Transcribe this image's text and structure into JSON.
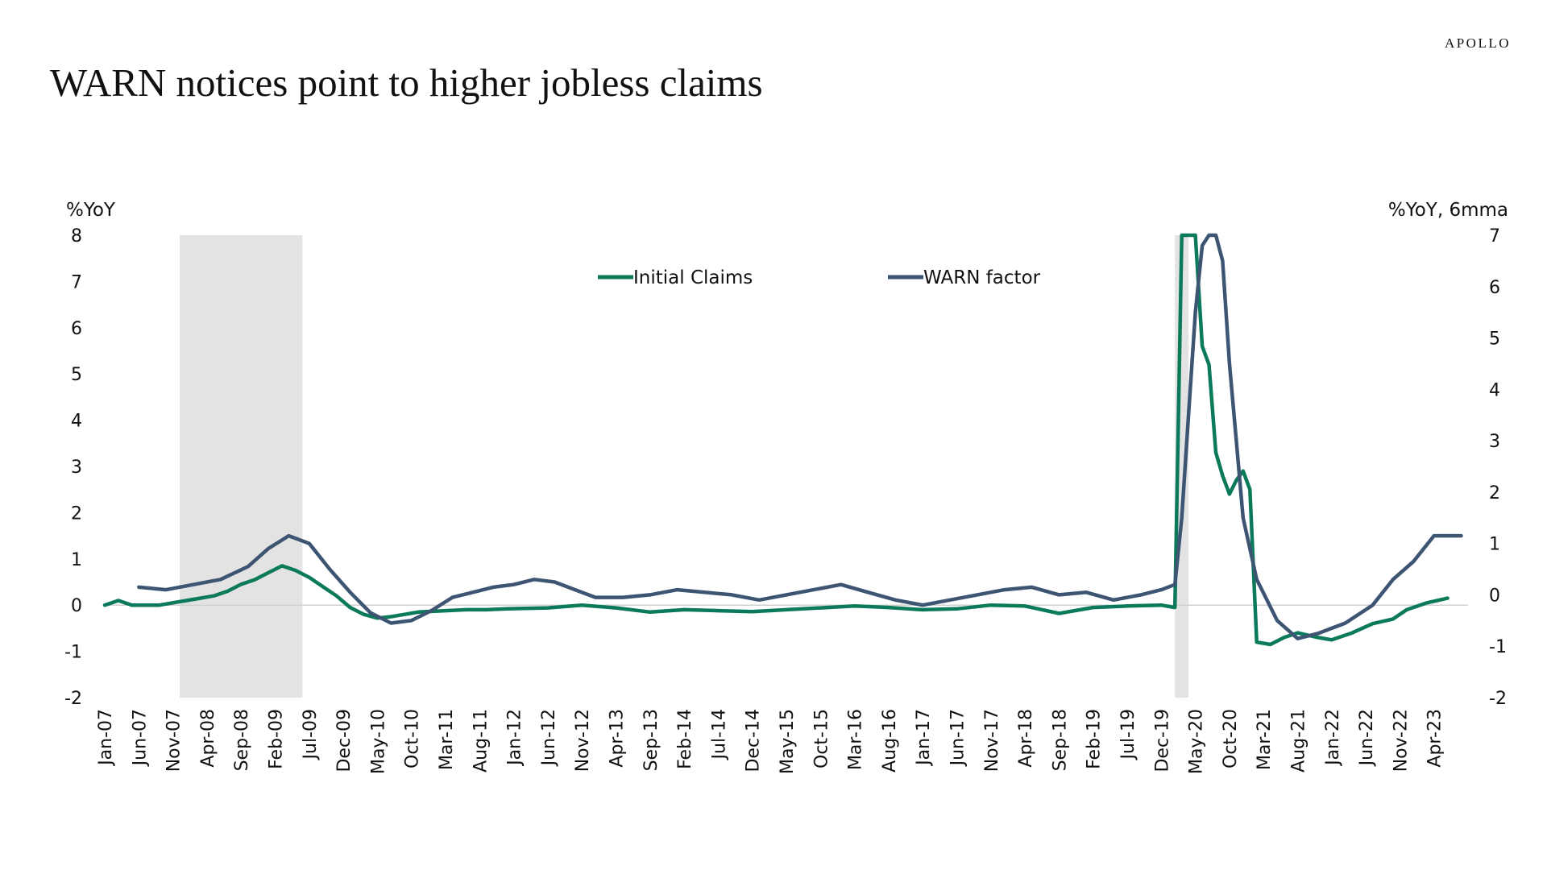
{
  "brand": "APOLLO",
  "title": "WARN notices point to higher jobless claims",
  "colors": {
    "initial_claims": "#0b7a5a",
    "warn_factor": "#3d5573",
    "recession": "#e3e3e3",
    "zero_line": "#d0d0d0"
  },
  "chart_data": {
    "type": "line",
    "title": "WARN notices point to higher jobless claims",
    "left_axis_label": "%YoY",
    "right_axis_label": "%YoY, 6mma",
    "ylim_left": [
      -2,
      8
    ],
    "ylim_right": [
      -2,
      7
    ],
    "yticks_left": [
      "8",
      "7",
      "6",
      "5",
      "4",
      "3",
      "2",
      "1",
      "0",
      "-1",
      "-2"
    ],
    "yticks_right": [
      "7",
      "6",
      "5",
      "4",
      "3",
      "2",
      "1",
      "0",
      "-1",
      "-2"
    ],
    "x_tick_labels": [
      "Jan-07",
      "Jun-07",
      "Nov-07",
      "Apr-08",
      "Sep-08",
      "Feb-09",
      "Jul-09",
      "Dec-09",
      "May-10",
      "Oct-10",
      "Mar-11",
      "Aug-11",
      "Jan-12",
      "Jun-12",
      "Nov-12",
      "Apr-13",
      "Sep-13",
      "Feb-14",
      "Jul-14",
      "Dec-14",
      "May-15",
      "Oct-15",
      "Mar-16",
      "Aug-16",
      "Jan-17",
      "Jun-17",
      "Nov-17",
      "Apr-18",
      "Sep-18",
      "Feb-19",
      "Jul-19",
      "Dec-19",
      "May-20",
      "Oct-20",
      "Mar-21",
      "Aug-21",
      "Jan-22",
      "Jun-22",
      "Nov-22",
      "Apr-23"
    ],
    "recessions": [
      [
        "2007-12",
        "2009-06"
      ],
      [
        "2020-02",
        "2020-04"
      ]
    ],
    "legend_position": "top",
    "series": [
      {
        "name": "Initial Claims",
        "axis": "left",
        "points": [
          [
            "2007-01",
            0.0
          ],
          [
            "2007-03",
            0.1
          ],
          [
            "2007-05",
            0.0
          ],
          [
            "2007-07",
            0.0
          ],
          [
            "2007-09",
            0.0
          ],
          [
            "2007-11",
            0.05
          ],
          [
            "2008-01",
            0.1
          ],
          [
            "2008-03",
            0.15
          ],
          [
            "2008-05",
            0.2
          ],
          [
            "2008-07",
            0.3
          ],
          [
            "2008-09",
            0.45
          ],
          [
            "2008-11",
            0.55
          ],
          [
            "2009-01",
            0.7
          ],
          [
            "2009-03",
            0.85
          ],
          [
            "2009-05",
            0.75
          ],
          [
            "2009-07",
            0.6
          ],
          [
            "2009-09",
            0.4
          ],
          [
            "2009-11",
            0.2
          ],
          [
            "2010-01",
            -0.05
          ],
          [
            "2010-03",
            -0.2
          ],
          [
            "2010-05",
            -0.28
          ],
          [
            "2010-07",
            -0.25
          ],
          [
            "2010-09",
            -0.2
          ],
          [
            "2010-11",
            -0.15
          ],
          [
            "2011-03",
            -0.12
          ],
          [
            "2011-06",
            -0.1
          ],
          [
            "2011-09",
            -0.1
          ],
          [
            "2011-12",
            -0.08
          ],
          [
            "2012-06",
            -0.06
          ],
          [
            "2012-11",
            0.0
          ],
          [
            "2013-04",
            -0.06
          ],
          [
            "2013-09",
            -0.15
          ],
          [
            "2014-02",
            -0.1
          ],
          [
            "2014-07",
            -0.12
          ],
          [
            "2014-12",
            -0.14
          ],
          [
            "2015-05",
            -0.1
          ],
          [
            "2015-10",
            -0.06
          ],
          [
            "2016-03",
            -0.02
          ],
          [
            "2016-08",
            -0.05
          ],
          [
            "2017-01",
            -0.1
          ],
          [
            "2017-06",
            -0.08
          ],
          [
            "2017-11",
            0.0
          ],
          [
            "2018-04",
            -0.02
          ],
          [
            "2018-09",
            -0.18
          ],
          [
            "2019-02",
            -0.05
          ],
          [
            "2019-07",
            -0.02
          ],
          [
            "2019-12",
            0.0
          ],
          [
            "2020-02",
            -0.05
          ],
          [
            "2020-03",
            8.0
          ],
          [
            "2020-04",
            8.0
          ],
          [
            "2020-05",
            8.0
          ],
          [
            "2020-06",
            5.6
          ],
          [
            "2020-07",
            5.2
          ],
          [
            "2020-08",
            3.3
          ],
          [
            "2020-09",
            2.8
          ],
          [
            "2020-10",
            2.4
          ],
          [
            "2020-11",
            2.7
          ],
          [
            "2020-12",
            2.9
          ],
          [
            "2021-01",
            2.5
          ],
          [
            "2021-02",
            -0.8
          ],
          [
            "2021-04",
            -0.85
          ],
          [
            "2021-06",
            -0.7
          ],
          [
            "2021-08",
            -0.6
          ],
          [
            "2021-11",
            -0.7
          ],
          [
            "2022-01",
            -0.75
          ],
          [
            "2022-04",
            -0.6
          ],
          [
            "2022-07",
            -0.4
          ],
          [
            "2022-10",
            -0.3
          ],
          [
            "2022-12",
            -0.1
          ],
          [
            "2023-03",
            0.05
          ],
          [
            "2023-06",
            0.15
          ]
        ]
      },
      {
        "name": "WARN factor",
        "axis": "right",
        "points": [
          [
            "2007-06",
            0.15
          ],
          [
            "2007-10",
            0.1
          ],
          [
            "2008-02",
            0.2
          ],
          [
            "2008-06",
            0.3
          ],
          [
            "2008-10",
            0.55
          ],
          [
            "2009-01",
            0.9
          ],
          [
            "2009-04",
            1.15
          ],
          [
            "2009-07",
            1.0
          ],
          [
            "2009-10",
            0.5
          ],
          [
            "2010-01",
            0.05
          ],
          [
            "2010-04",
            -0.35
          ],
          [
            "2010-07",
            -0.55
          ],
          [
            "2010-10",
            -0.5
          ],
          [
            "2011-01",
            -0.3
          ],
          [
            "2011-04",
            -0.05
          ],
          [
            "2011-07",
            0.05
          ],
          [
            "2011-10",
            0.15
          ],
          [
            "2012-01",
            0.2
          ],
          [
            "2012-04",
            0.3
          ],
          [
            "2012-07",
            0.25
          ],
          [
            "2012-10",
            0.1
          ],
          [
            "2013-01",
            -0.05
          ],
          [
            "2013-05",
            -0.05
          ],
          [
            "2013-09",
            0.0
          ],
          [
            "2014-01",
            0.1
          ],
          [
            "2014-05",
            0.05
          ],
          [
            "2014-09",
            0.0
          ],
          [
            "2015-01",
            -0.1
          ],
          [
            "2015-05",
            0.0
          ],
          [
            "2015-09",
            0.1
          ],
          [
            "2016-01",
            0.2
          ],
          [
            "2016-05",
            0.05
          ],
          [
            "2016-09",
            -0.1
          ],
          [
            "2017-01",
            -0.2
          ],
          [
            "2017-05",
            -0.1
          ],
          [
            "2017-09",
            0.0
          ],
          [
            "2018-01",
            0.1
          ],
          [
            "2018-05",
            0.15
          ],
          [
            "2018-09",
            0.0
          ],
          [
            "2019-01",
            0.05
          ],
          [
            "2019-05",
            -0.1
          ],
          [
            "2019-09",
            0.0
          ],
          [
            "2019-12",
            0.1
          ],
          [
            "2020-02",
            0.2
          ],
          [
            "2020-03",
            1.5
          ],
          [
            "2020-04",
            3.5
          ],
          [
            "2020-05",
            5.5
          ],
          [
            "2020-06",
            6.8
          ],
          [
            "2020-07",
            7.0
          ],
          [
            "2020-08",
            7.0
          ],
          [
            "2020-09",
            6.5
          ],
          [
            "2020-10",
            4.5
          ],
          [
            "2020-11",
            3.0
          ],
          [
            "2020-12",
            1.5
          ],
          [
            "2021-02",
            0.3
          ],
          [
            "2021-05",
            -0.5
          ],
          [
            "2021-08",
            -0.85
          ],
          [
            "2021-11",
            -0.75
          ],
          [
            "2022-03",
            -0.55
          ],
          [
            "2022-07",
            -0.2
          ],
          [
            "2022-10",
            0.3
          ],
          [
            "2023-01",
            0.65
          ],
          [
            "2023-04",
            1.15
          ],
          [
            "2023-08",
            1.15
          ]
        ]
      }
    ]
  }
}
